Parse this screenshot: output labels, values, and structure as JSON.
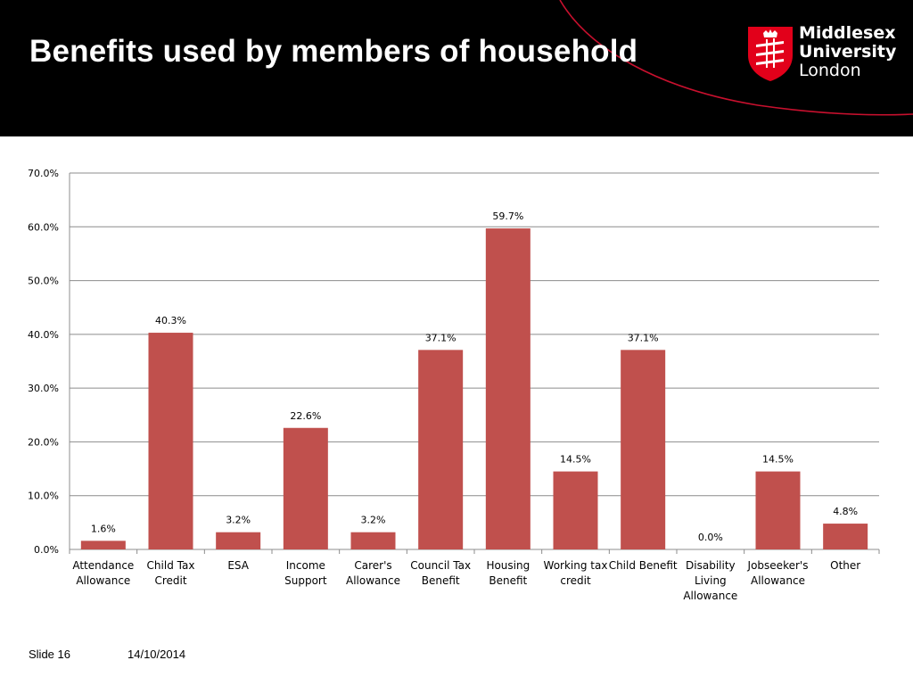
{
  "slide": {
    "title": "Benefits used by members of household",
    "slide_number": "Slide 16",
    "date": "14/10/2014"
  },
  "logo": {
    "line1": "Middlesex",
    "line2": "University",
    "line3": "London",
    "shield_color": "#e2001a"
  },
  "colors": {
    "header_bg": "#000000",
    "accent_swoosh": "#c8102e",
    "bar": "#c0504d",
    "gridline": "#8c8c8c"
  },
  "chart_data": {
    "type": "bar",
    "title": "",
    "xlabel": "",
    "ylabel": "",
    "categories": [
      [
        "Attendance",
        "Allowance"
      ],
      [
        "Child Tax",
        "Credit"
      ],
      [
        "ESA"
      ],
      [
        "Income",
        "Support"
      ],
      [
        "Carer's",
        "Allowance"
      ],
      [
        "Council Tax",
        "Benefit"
      ],
      [
        "Housing",
        "Benefit"
      ],
      [
        "Working tax",
        "credit"
      ],
      [
        "Child Benefit"
      ],
      [
        "Disability",
        "Living",
        "Allowance"
      ],
      [
        "Jobseeker's",
        "Allowance"
      ],
      [
        "Other"
      ]
    ],
    "values": [
      1.6,
      40.3,
      3.2,
      22.6,
      3.2,
      37.1,
      59.7,
      14.5,
      37.1,
      0.0,
      14.5,
      4.8
    ],
    "data_labels": [
      "1.6%",
      "40.3%",
      "3.2%",
      "22.6%",
      "3.2%",
      "37.1%",
      "59.7%",
      "14.5%",
      "37.1%",
      "0.0%",
      "14.5%",
      "4.8%"
    ],
    "ylim": [
      0,
      70
    ],
    "yticks": [
      0,
      10,
      20,
      30,
      40,
      50,
      60,
      70
    ],
    "ytick_labels": [
      "0.0%",
      "10.0%",
      "20.0%",
      "30.0%",
      "40.0%",
      "50.0%",
      "60.0%",
      "70.0%"
    ],
    "grid": true,
    "legend": "none"
  }
}
